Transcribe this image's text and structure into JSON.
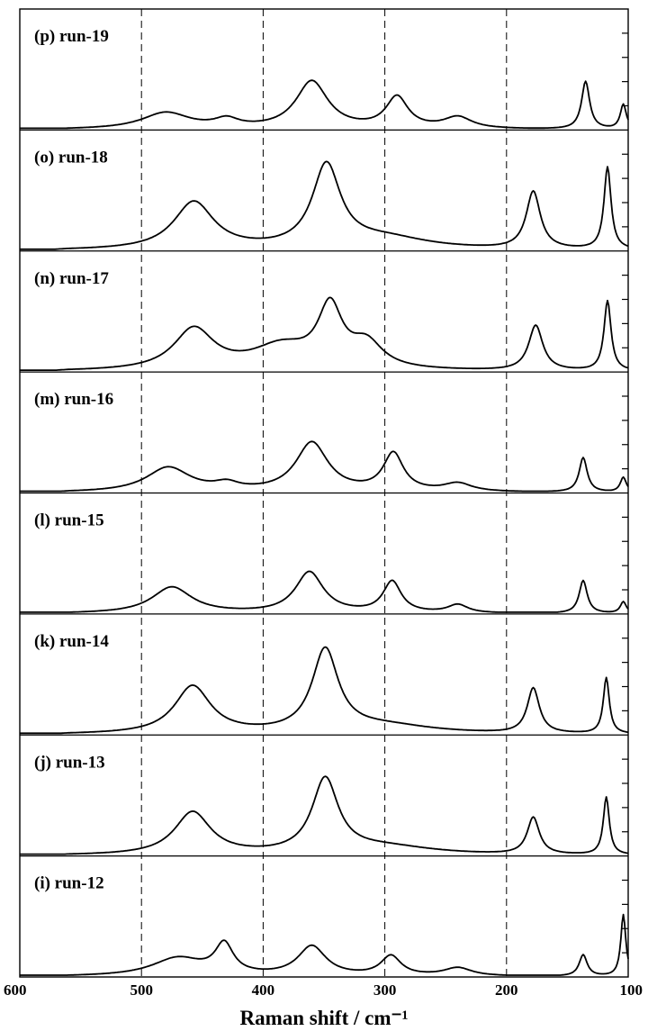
{
  "chart_data": {
    "type": "line",
    "title": "",
    "xlabel": "Raman shift / cm⁻¹",
    "ylabel": "",
    "xlim": [
      600,
      100
    ],
    "x_reversed": true,
    "x_ticks": [
      600,
      500,
      400,
      300,
      200,
      100
    ],
    "dashed_reference_lines": [
      500,
      400,
      300,
      200
    ],
    "grid": false,
    "series_type_note_free": true,
    "panels": [
      {
        "label": "(p) run-19",
        "peaks": [
          [
            480,
            0.2,
            24
          ],
          [
            430,
            0.1,
            12
          ],
          [
            360,
            0.58,
            16
          ],
          [
            290,
            0.38,
            11
          ],
          [
            240,
            0.14,
            14
          ],
          [
            135,
            0.58,
            4
          ],
          [
            104,
            0.3,
            3
          ]
        ]
      },
      {
        "label": "(o) run-18",
        "peaks": [
          [
            457,
            0.58,
            20
          ],
          [
            348,
            1.0,
            14
          ],
          [
            300,
            0.14,
            45
          ],
          [
            178,
            0.7,
            7
          ],
          [
            117,
            1.0,
            3.5
          ]
        ]
      },
      {
        "label": "(n) run-17",
        "peaks": [
          [
            457,
            0.5,
            20
          ],
          [
            385,
            0.28,
            30
          ],
          [
            345,
            0.72,
            12
          ],
          [
            315,
            0.3,
            16
          ],
          [
            176,
            0.55,
            7
          ],
          [
            117,
            0.85,
            3.5
          ]
        ]
      },
      {
        "label": "(m) run-16",
        "peaks": [
          [
            478,
            0.3,
            22
          ],
          [
            430,
            0.08,
            12
          ],
          [
            360,
            0.6,
            16
          ],
          [
            293,
            0.46,
            10
          ],
          [
            240,
            0.1,
            14
          ],
          [
            137,
            0.42,
            4
          ],
          [
            104,
            0.18,
            3
          ]
        ]
      },
      {
        "label": "(l) run-15",
        "peaks": [
          [
            475,
            0.32,
            20
          ],
          [
            362,
            0.5,
            14
          ],
          [
            294,
            0.38,
            9
          ],
          [
            240,
            0.1,
            10
          ],
          [
            137,
            0.4,
            4
          ],
          [
            104,
            0.14,
            3
          ]
        ]
      },
      {
        "label": "(k) run-14",
        "peaks": [
          [
            458,
            0.58,
            18
          ],
          [
            349,
            1.0,
            13
          ],
          [
            300,
            0.1,
            50
          ],
          [
            178,
            0.55,
            6
          ],
          [
            118,
            0.68,
            3
          ]
        ]
      },
      {
        "label": "(j) run-13",
        "peaks": [
          [
            458,
            0.52,
            18
          ],
          [
            349,
            0.9,
            13
          ],
          [
            300,
            0.1,
            50
          ],
          [
            178,
            0.45,
            6
          ],
          [
            118,
            0.7,
            3
          ]
        ]
      },
      {
        "label": "(i) run-12",
        "peaks": [
          [
            470,
            0.22,
            26
          ],
          [
            432,
            0.36,
            9
          ],
          [
            360,
            0.36,
            14
          ],
          [
            295,
            0.24,
            10
          ],
          [
            240,
            0.1,
            14
          ],
          [
            137,
            0.26,
            4
          ],
          [
            104,
            0.75,
            2.5
          ]
        ]
      }
    ]
  }
}
